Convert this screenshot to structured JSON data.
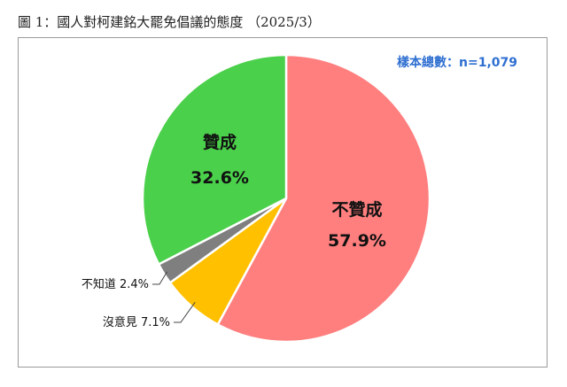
{
  "figure": {
    "caption": "圖 1：國人對柯建銘大罷免倡議的態度 （2025/3）",
    "sample_note": "樣本總數：n=1,079"
  },
  "chart_data": {
    "type": "pie",
    "slices": [
      {
        "label": "不贊成",
        "value": 57.9,
        "value_text": "57.9%",
        "color": "#ff7f7f"
      },
      {
        "label": "沒意見",
        "value": 7.1,
        "value_text": "7.1%",
        "color": "#ffc000"
      },
      {
        "label": "不知道",
        "value": 2.4,
        "value_text": "2.4%",
        "color": "#7f7f7f"
      },
      {
        "label": "贊成",
        "value": 32.6,
        "value_text": "32.6%",
        "color": "#4bd04b"
      }
    ],
    "start_angle_deg": 0,
    "direction": "clockwise"
  }
}
